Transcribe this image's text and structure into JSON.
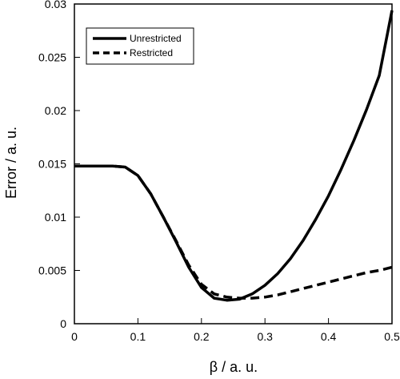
{
  "chart_data": {
    "type": "line",
    "xlabel": "β / a. u.",
    "ylabel": "Error / a. u.",
    "xlim": [
      0,
      0.5
    ],
    "ylim": [
      0,
      0.03
    ],
    "xticks": [
      "0",
      "0.1",
      "0.2",
      "0.3",
      "0.4",
      "0.5"
    ],
    "yticks": [
      "0",
      "0.005",
      "0.01",
      "0.015",
      "0.02",
      "0.025",
      "0.03"
    ],
    "grid": false,
    "legend_position": "top-left",
    "series": [
      {
        "name": "Unrestricted",
        "style": "solid",
        "x": [
          0,
          0.02,
          0.04,
          0.06,
          0.08,
          0.1,
          0.12,
          0.14,
          0.16,
          0.18,
          0.2,
          0.22,
          0.24,
          0.26,
          0.28,
          0.3,
          0.32,
          0.34,
          0.36,
          0.38,
          0.4,
          0.42,
          0.44,
          0.46,
          0.48,
          0.5
        ],
        "y": [
          0.0148,
          0.0148,
          0.0148,
          0.0148,
          0.0147,
          0.0139,
          0.0122,
          0.01,
          0.0077,
          0.0053,
          0.0034,
          0.0024,
          0.0022,
          0.0023,
          0.0028,
          0.0036,
          0.0047,
          0.0061,
          0.0078,
          0.0098,
          0.012,
          0.0145,
          0.0172,
          0.0201,
          0.0233,
          0.0294
        ]
      },
      {
        "name": "Restricted",
        "style": "dashed",
        "x": [
          0,
          0.02,
          0.04,
          0.06,
          0.08,
          0.1,
          0.12,
          0.14,
          0.16,
          0.18,
          0.2,
          0.22,
          0.24,
          0.26,
          0.28,
          0.3,
          0.32,
          0.34,
          0.36,
          0.38,
          0.4,
          0.42,
          0.44,
          0.46,
          0.48,
          0.5
        ],
        "y": [
          0.0148,
          0.0148,
          0.0148,
          0.0148,
          0.0147,
          0.0139,
          0.0122,
          0.01,
          0.0078,
          0.0055,
          0.0037,
          0.0028,
          0.0025,
          0.0024,
          0.0024,
          0.0025,
          0.0027,
          0.003,
          0.0033,
          0.0036,
          0.0039,
          0.0042,
          0.0045,
          0.0048,
          0.005,
          0.0053
        ]
      }
    ]
  }
}
